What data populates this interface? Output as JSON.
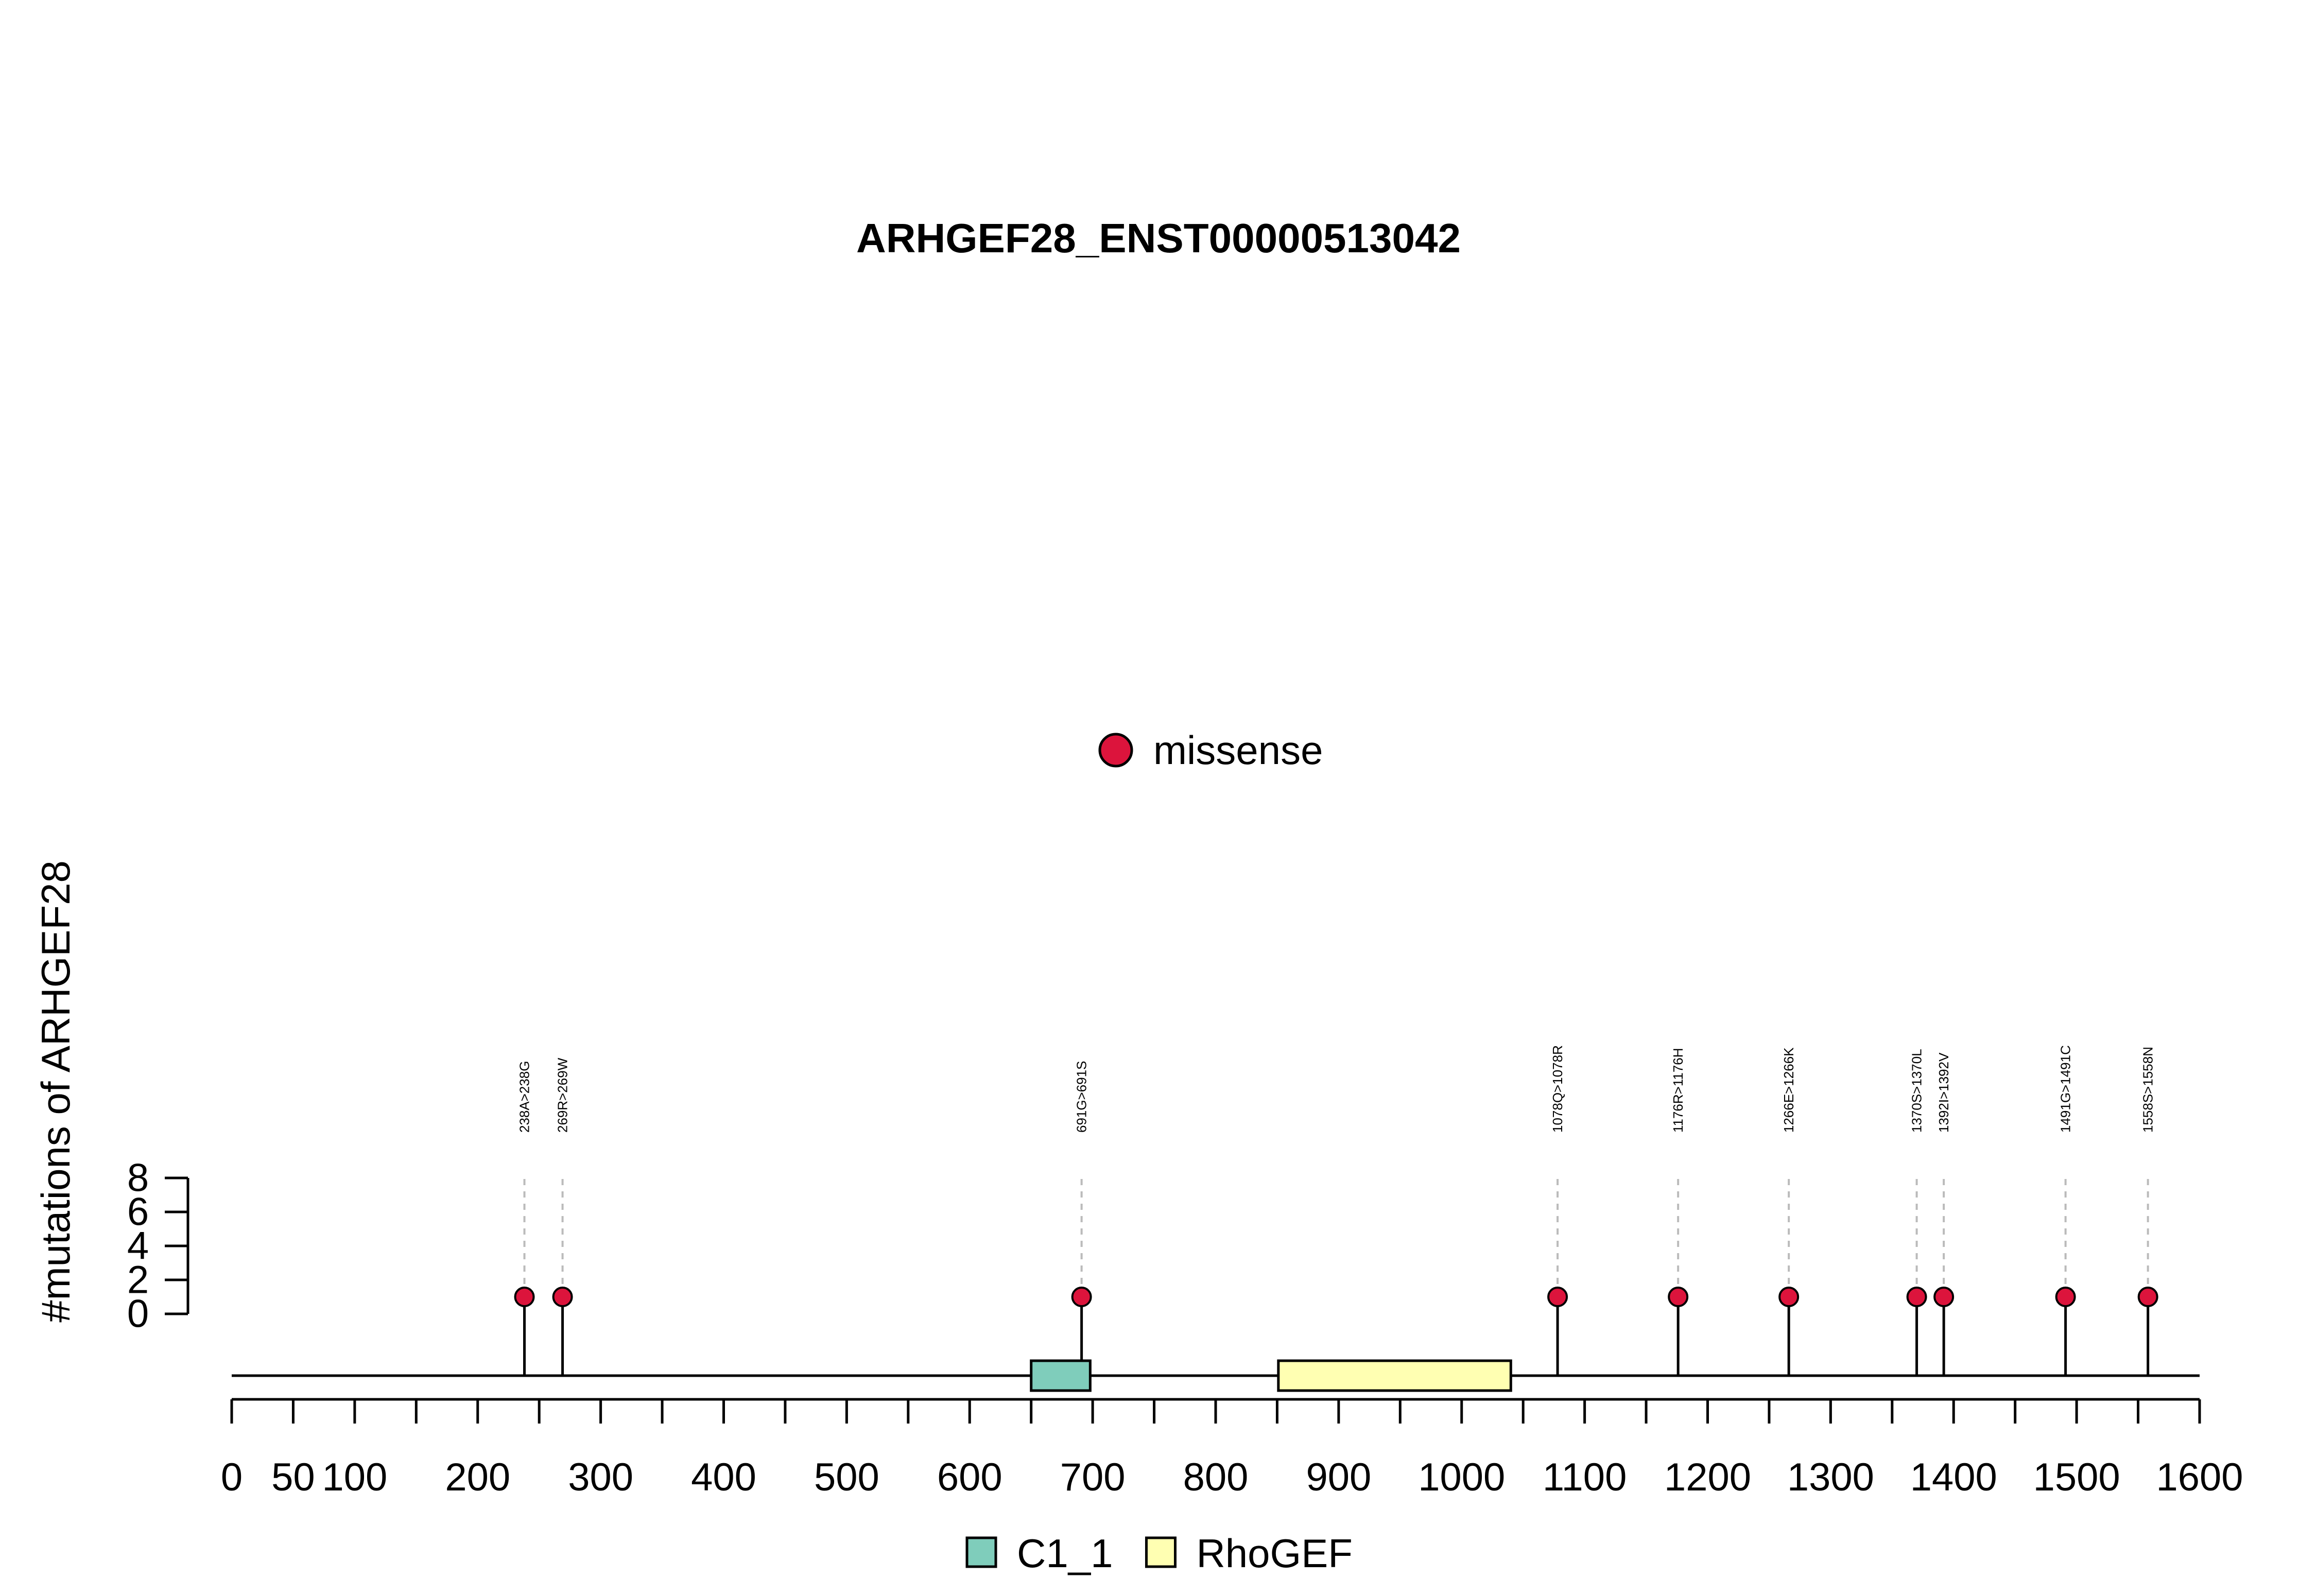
{
  "chart_data": {
    "type": "lollipop",
    "title": "ARHGEF28_ENST00000513042",
    "ylabel": "#mutations of ARHGEF28",
    "xlim": [
      0,
      1600
    ],
    "x_ticks": [
      0,
      50,
      100,
      200,
      300,
      400,
      500,
      600,
      700,
      800,
      900,
      1000,
      1100,
      1200,
      1300,
      1400,
      1500,
      1600
    ],
    "x_minor_step": 50,
    "y_ticks": [
      0,
      2,
      4,
      6,
      8
    ],
    "ylim": [
      0,
      8
    ],
    "mutation_legend": {
      "label": "missense",
      "color": "#dc143c"
    },
    "mutations": [
      {
        "position": 238,
        "count": 1,
        "label": "238A>238G",
        "type": "missense"
      },
      {
        "position": 269,
        "count": 1,
        "label": "269R>269W",
        "type": "missense"
      },
      {
        "position": 691,
        "count": 1,
        "label": "691G>691S",
        "type": "missense"
      },
      {
        "position": 1078,
        "count": 1,
        "label": "1078Q>1078R",
        "type": "missense"
      },
      {
        "position": 1176,
        "count": 1,
        "label": "1176R>1176H",
        "type": "missense"
      },
      {
        "position": 1266,
        "count": 1,
        "label": "1266E>1266K",
        "type": "missense"
      },
      {
        "position": 1370,
        "count": 1,
        "label": "1370S>1370L",
        "type": "missense"
      },
      {
        "position": 1392,
        "count": 1,
        "label": "1392I>1392V",
        "type": "missense"
      },
      {
        "position": 1491,
        "count": 1,
        "label": "1491G>1491C",
        "type": "missense"
      },
      {
        "position": 1558,
        "count": 1,
        "label": "1558S>1558N",
        "type": "missense"
      }
    ],
    "domains": [
      {
        "name": "C1_1",
        "start": 650,
        "end": 698,
        "color": "#7fcdbb"
      },
      {
        "name": "RhoGEF",
        "start": 851,
        "end": 1040,
        "color": "#ffffb2"
      }
    ]
  }
}
